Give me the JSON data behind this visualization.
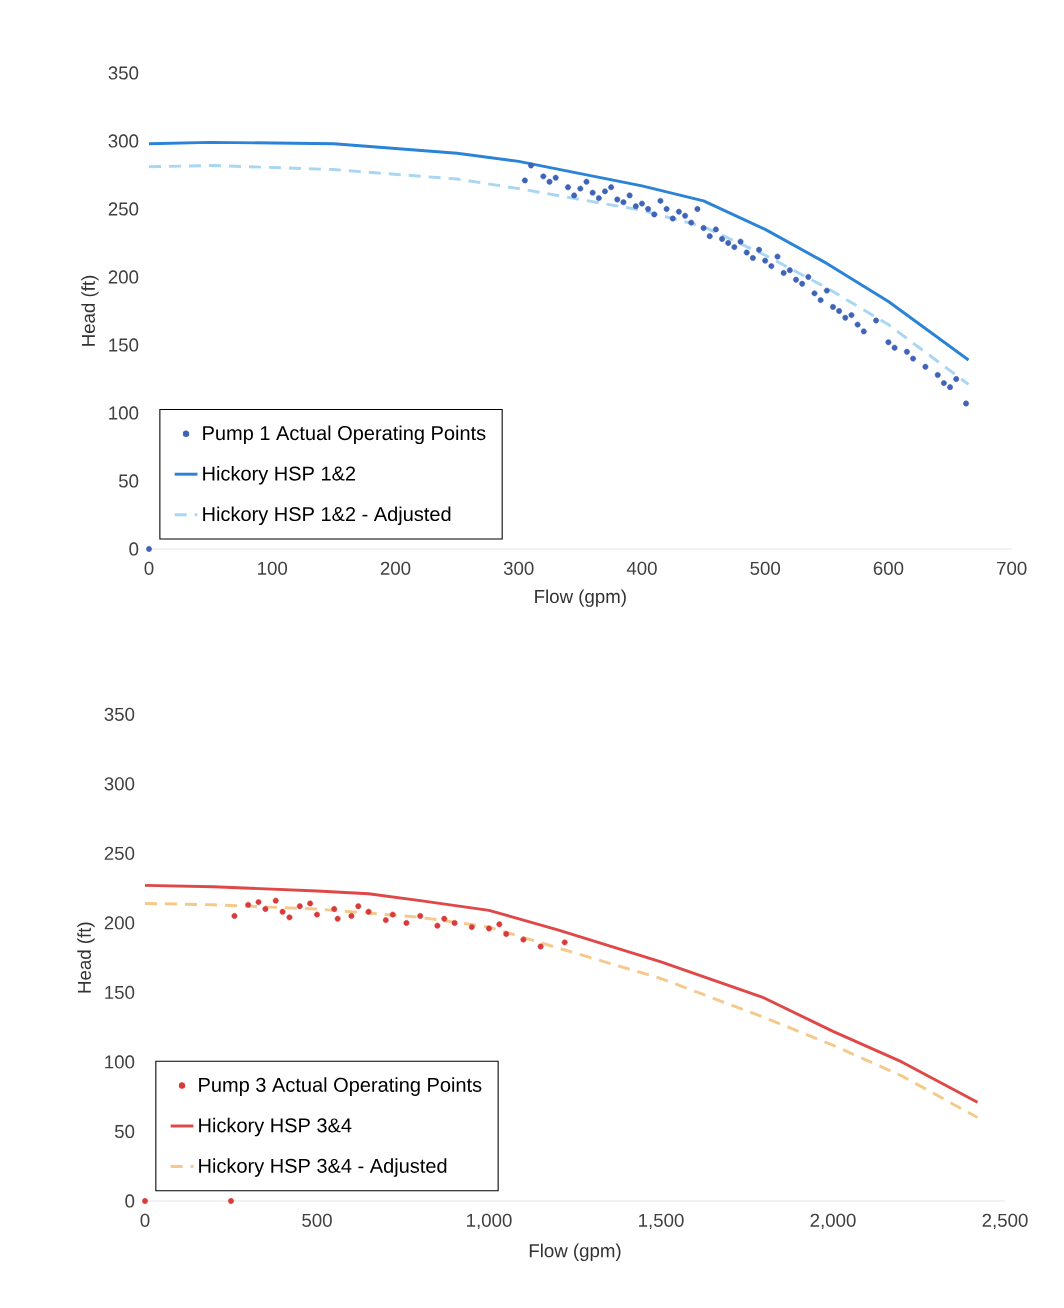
{
  "chart_data": [
    {
      "type": "scatter",
      "xlabel": "Flow (gpm)",
      "ylabel": "Head (ft)",
      "xlim": [
        0,
        700
      ],
      "ylim": [
        0,
        350
      ],
      "xticks": [
        0,
        100,
        200,
        300,
        400,
        500,
        600,
        700
      ],
      "yticks": [
        0,
        50,
        100,
        150,
        200,
        250,
        300,
        350
      ],
      "legend": "bottom left",
      "series": [
        {
          "name": "Pump 1 Actual Operating Points",
          "marker": "circle",
          "color": "#3f63b8",
          "x": [
            0,
            305,
            310,
            320,
            325,
            330,
            340,
            345,
            350,
            355,
            360,
            365,
            370,
            375,
            380,
            385,
            390,
            395,
            400,
            405,
            410,
            415,
            420,
            425,
            430,
            435,
            440,
            445,
            450,
            455,
            460,
            465,
            470,
            475,
            480,
            485,
            490,
            495,
            500,
            505,
            510,
            515,
            520,
            525,
            530,
            535,
            540,
            545,
            550,
            555,
            560,
            565,
            570,
            575,
            580,
            590,
            600,
            605,
            615,
            620,
            630,
            640,
            645,
            650,
            655,
            663
          ],
          "values": [
            0,
            271,
            282,
            274,
            270,
            273,
            266,
            260,
            265,
            270,
            262,
            258,
            263,
            266,
            257,
            255,
            260,
            252,
            254,
            250,
            246,
            256,
            250,
            243,
            248,
            245,
            240,
            250,
            236,
            230,
            235,
            228,
            225,
            222,
            226,
            218,
            214,
            220,
            212,
            208,
            215,
            203,
            205,
            198,
            195,
            200,
            188,
            183,
            190,
            178,
            175,
            170,
            172,
            165,
            160,
            168,
            152,
            148,
            145,
            140,
            134,
            128,
            122,
            119,
            125,
            107
          ]
        },
        {
          "name": "Hickory HSP 1&2",
          "type": "line",
          "line_style": "solid",
          "color": "#2a83d6",
          "x": [
            0,
            50,
            150,
            250,
            300,
            400,
            450,
            500,
            550,
            600,
            665
          ],
          "values": [
            298,
            299,
            298,
            291,
            285,
            267,
            256,
            235,
            210,
            182,
            139
          ]
        },
        {
          "name": "Hickory HSP 1&2 - Adjusted",
          "type": "line",
          "line_style": "dashed",
          "color": "#a9d6f2",
          "x": [
            0,
            50,
            150,
            250,
            300,
            400,
            450,
            500,
            550,
            600,
            665
          ],
          "values": [
            281,
            282,
            279,
            272,
            265,
            249,
            237,
            216,
            192,
            165,
            121
          ]
        }
      ]
    },
    {
      "type": "scatter",
      "xlabel": "Flow (gpm)",
      "ylabel": "Head (ft)",
      "xlim": [
        0,
        2500
      ],
      "ylim": [
        0,
        350
      ],
      "xticks": [
        0,
        {
          "value": 500,
          "label": "500"
        },
        {
          "value": 1000,
          "label": "1,000"
        },
        {
          "value": 1500,
          "label": "1,500"
        },
        {
          "value": 2000,
          "label": "2,000"
        },
        {
          "value": 2500,
          "label": "2,500"
        }
      ],
      "yticks": [
        0,
        50,
        100,
        150,
        200,
        250,
        300,
        350
      ],
      "legend": "bottom left",
      "series": [
        {
          "name": "Pump 3 Actual Operating Points",
          "marker": "circle",
          "color": "#d93a3a",
          "x": [
            0,
            250,
            260,
            300,
            330,
            350,
            380,
            400,
            420,
            450,
            480,
            500,
            550,
            560,
            600,
            620,
            650,
            700,
            720,
            760,
            800,
            850,
            870,
            900,
            950,
            1000,
            1030,
            1050,
            1100,
            1150,
            1220
          ],
          "values": [
            0,
            0,
            205,
            213,
            215,
            210,
            216,
            208,
            204,
            212,
            214,
            206,
            210,
            203,
            205,
            212,
            208,
            202,
            206,
            200,
            205,
            198,
            203,
            200,
            197,
            196,
            199,
            192,
            188,
            183,
            186
          ]
        },
        {
          "name": "Hickory HSP 3&4",
          "type": "line",
          "line_style": "solid",
          "color": "#e04848",
          "x": [
            0,
            200,
            500,
            650,
            800,
            1000,
            1200,
            1500,
            1800,
            2000,
            2200,
            2420
          ],
          "values": [
            227,
            226,
            223,
            221,
            216,
            209,
            195,
            172,
            146,
            122,
            100,
            71
          ]
        },
        {
          "name": "Hickory HSP 3&4 - Adjusted",
          "type": "line",
          "line_style": "dashed",
          "color": "#f5c98b",
          "x": [
            0,
            200,
            500,
            800,
            1000,
            1200,
            1500,
            1800,
            2000,
            2200,
            2420
          ],
          "values": [
            214,
            213,
            210,
            204,
            197,
            182,
            160,
            132,
            112,
            90,
            60
          ]
        }
      ]
    }
  ]
}
